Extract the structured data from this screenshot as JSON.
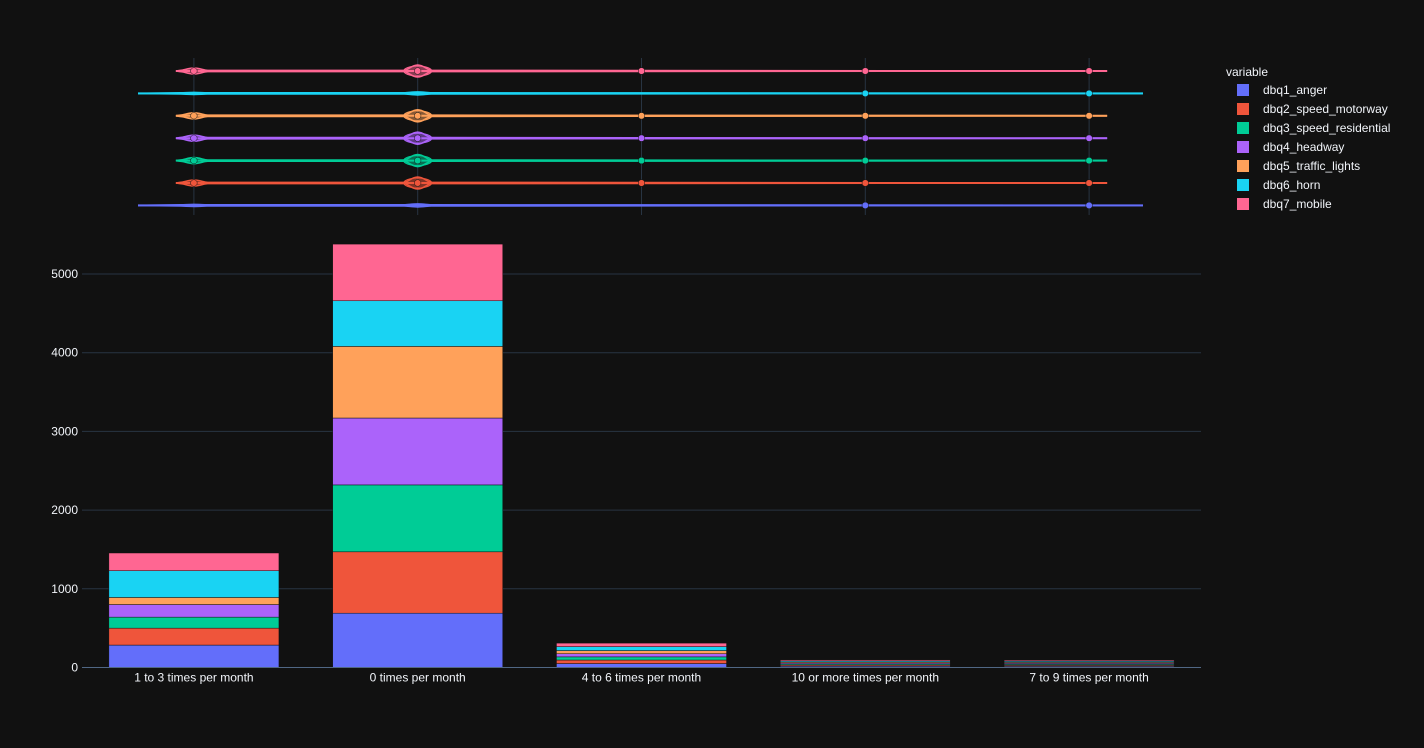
{
  "chart_data": {
    "type": "bar",
    "barmode": "stack",
    "title": "",
    "xlabel": "",
    "ylabel": "",
    "ylim": [
      0,
      5500
    ],
    "yticks": [
      0,
      1000,
      2000,
      3000,
      4000,
      5000
    ],
    "categories": [
      "1 to 3 times per month",
      "0 times per month",
      "4 to 6 times per month",
      "10 or more times per month",
      "7 to 9 times per month"
    ],
    "legend": {
      "title": "variable",
      "placement": "top-right"
    },
    "series": [
      {
        "name": "dbq1_anger",
        "color": "#636efa",
        "values": [
          285,
          690,
          50,
          15,
          14
        ]
      },
      {
        "name": "dbq2_speed_motorway",
        "color": "#EF553B",
        "values": [
          215,
          780,
          45,
          14,
          13
        ]
      },
      {
        "name": "dbq3_speed_residential",
        "color": "#00cc96",
        "values": [
          140,
          850,
          40,
          13,
          13
        ]
      },
      {
        "name": "dbq4_headway",
        "color": "#ab63fa",
        "values": [
          160,
          850,
          40,
          14,
          13
        ]
      },
      {
        "name": "dbq5_traffic_lights",
        "color": "#FFA15A",
        "values": [
          90,
          910,
          40,
          13,
          12
        ]
      },
      {
        "name": "dbq6_horn",
        "color": "#19d3f3",
        "values": [
          340,
          580,
          50,
          15,
          14
        ]
      },
      {
        "name": "dbq7_mobile",
        "color": "#FF6692",
        "values": [
          225,
          720,
          45,
          14,
          13
        ]
      }
    ],
    "marginal": {
      "type": "violin",
      "orientation": "horizontal",
      "order": [
        "dbq7_mobile",
        "dbq6_horn",
        "dbq5_traffic_lights",
        "dbq4_headway",
        "dbq3_speed_residential",
        "dbq2_speed_motorway",
        "dbq1_anger"
      ],
      "points_at_categories": [
        0,
        1,
        2,
        3,
        4
      ]
    }
  }
}
